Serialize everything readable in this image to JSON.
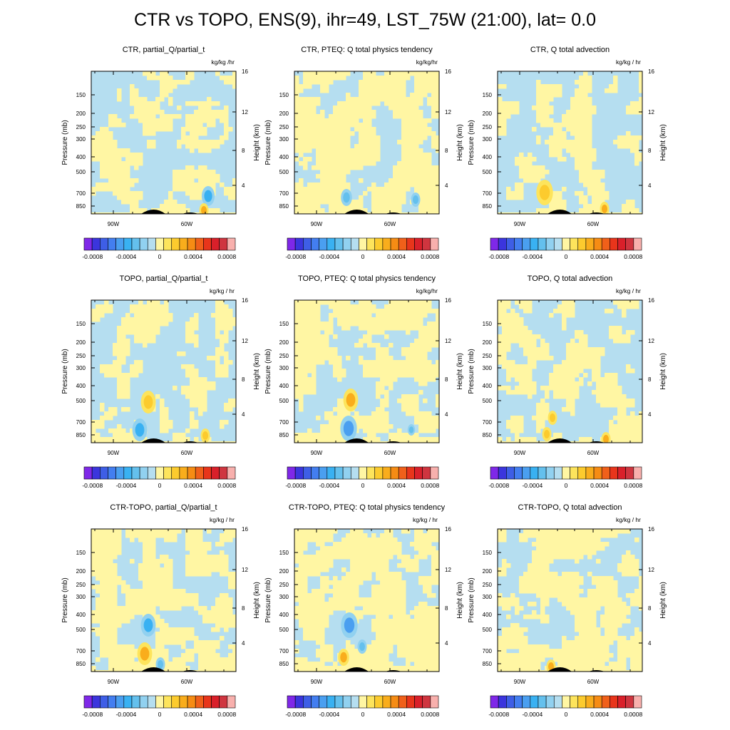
{
  "main_title": "CTR vs TOPO, ENS(9), ihr=49, LST_75W (21:00), lat=  0.0",
  "colors": {
    "levels": [
      "#7f28e8",
      "#3b35dd",
      "#3e5ee6",
      "#437ef0",
      "#4a9ff0",
      "#39b1f2",
      "#64c0ed",
      "#91d1f0",
      "#b5def0",
      "#fff6a3",
      "#fde45c",
      "#fccb2e",
      "#f9ad1c",
      "#f68c14",
      "#f0601a",
      "#e8351b",
      "#d9202a",
      "#cf353f",
      "#f8b0ad"
    ],
    "background_field": "#b5def0",
    "positive_field": "#fff6a3",
    "terrain": "#000000"
  },
  "chart_data": [
    {
      "type": "contour",
      "title": "CTR, partial_Q/partial_t",
      "units": "kg/kg /hr",
      "ylabel": "Pressure (mb)",
      "y2label": "Height (km)",
      "pressure_ticks": [
        "150",
        "200",
        "250",
        "300",
        "400",
        "500",
        "700",
        "850"
      ],
      "height_ticks": [
        "4",
        "8",
        "12",
        "16"
      ],
      "x_ticks": [
        "90W",
        "60W"
      ],
      "colorbar_labels": [
        "-0.0008",
        "-0.0004",
        "0",
        "0.0004",
        "0.0008"
      ],
      "colorbar_range": [
        -0.0009,
        0.0009
      ],
      "regime": "blue"
    },
    {
      "type": "contour",
      "title": "CTR, PTEQ: Q total physics tendency",
      "units": "kg/kg/hr",
      "ylabel": "Pressure (mb)",
      "y2label": "Height (km)",
      "pressure_ticks": [
        "150",
        "200",
        "250",
        "300",
        "400",
        "500",
        "700",
        "850"
      ],
      "height_ticks": [
        "4",
        "8",
        "12",
        "16"
      ],
      "x_ticks": [
        "90W",
        "60W"
      ],
      "colorbar_labels": [
        "-0.0008",
        "-0.0004",
        "0",
        "0.0004",
        "0.0008"
      ],
      "colorbar_range": [
        -0.0009,
        0.0009
      ],
      "regime": "yellow"
    },
    {
      "type": "contour",
      "title": "CTR, Q total advection",
      "units": "kg/kg / hr",
      "ylabel": "Pressure (mb)",
      "y2label": "Height (km)",
      "pressure_ticks": [
        "150",
        "200",
        "250",
        "300",
        "400",
        "500",
        "700",
        "850"
      ],
      "height_ticks": [
        "4",
        "8",
        "12",
        "16"
      ],
      "x_ticks": [
        "90W",
        "60W"
      ],
      "colorbar_labels": [
        "-0.0008",
        "-0.0004",
        "0",
        "0.0004",
        "0.0008"
      ],
      "colorbar_range": [
        -0.0009,
        0.0009
      ],
      "regime": "blue"
    },
    {
      "type": "contour",
      "title": "TOPO, partial_Q/partial_t",
      "units": "kg/kg / hr",
      "ylabel": "Pressure (mb)",
      "y2label": "Height (km)",
      "pressure_ticks": [
        "150",
        "200",
        "250",
        "300",
        "400",
        "500",
        "700",
        "850"
      ],
      "height_ticks": [
        "4",
        "8",
        "12",
        "16"
      ],
      "x_ticks": [
        "90W",
        "60W"
      ],
      "colorbar_labels": [
        "-0.0008",
        "-0.0004",
        "0",
        "0.0004",
        "0.0008"
      ],
      "colorbar_range": [
        -0.0009,
        0.0009
      ],
      "regime": "blue"
    },
    {
      "type": "contour",
      "title": "TOPO, PTEQ: Q total physics tendency",
      "units": "kg/kg/hr",
      "ylabel": "Pressure (mb)",
      "y2label": "Height (km)",
      "pressure_ticks": [
        "150",
        "200",
        "250",
        "300",
        "400",
        "500",
        "700",
        "850"
      ],
      "height_ticks": [
        "4",
        "8",
        "12",
        "16"
      ],
      "x_ticks": [
        "90W",
        "60W"
      ],
      "colorbar_labels": [
        "-0.0008",
        "-0.0004",
        "0",
        "0.0004",
        "0.0008"
      ],
      "colorbar_range": [
        -0.0009,
        0.0009
      ],
      "regime": "yellow"
    },
    {
      "type": "contour",
      "title": "TOPO, Q total advection",
      "units": "kg/kg / hr",
      "ylabel": "Pressure (mb)",
      "y2label": "Height (km)",
      "pressure_ticks": [
        "150",
        "200",
        "250",
        "300",
        "400",
        "500",
        "700",
        "850"
      ],
      "height_ticks": [
        "4",
        "8",
        "12",
        "16"
      ],
      "x_ticks": [
        "90W",
        "60W"
      ],
      "colorbar_labels": [
        "-0.0008",
        "-0.0004",
        "0",
        "0.0004",
        "0.0008"
      ],
      "colorbar_range": [
        -0.0009,
        0.0009
      ],
      "regime": "blue"
    },
    {
      "type": "contour",
      "title": "CTR-TOPO, partial_Q/partial_t",
      "units": "kg/kg / hr",
      "ylabel": "Pressure (mb)",
      "y2label": "Height (km)",
      "pressure_ticks": [
        "150",
        "200",
        "250",
        "300",
        "400",
        "500",
        "700",
        "850"
      ],
      "height_ticks": [
        "4",
        "8",
        "12",
        "16"
      ],
      "x_ticks": [
        "90W",
        "60W"
      ],
      "colorbar_labels": [
        "-0.0008",
        "-0.0004",
        "0",
        "0.0004",
        "0.0008"
      ],
      "colorbar_range": [
        -0.0009,
        0.0009
      ],
      "regime": "yellow"
    },
    {
      "type": "contour",
      "title": "CTR-TOPO, PTEQ: Q total physics tendency",
      "units": "kg/kg / hr",
      "ylabel": "Pressure (mb)",
      "y2label": "Height (km)",
      "pressure_ticks": [
        "150",
        "200",
        "250",
        "300",
        "400",
        "500",
        "700",
        "850"
      ],
      "height_ticks": [
        "4",
        "8",
        "12",
        "16"
      ],
      "x_ticks": [
        "90W",
        "60W"
      ],
      "colorbar_labels": [
        "-0.0008",
        "-0.0004",
        "0",
        "0.0004",
        "0.0008"
      ],
      "colorbar_range": [
        -0.0009,
        0.0009
      ],
      "regime": "yellow"
    },
    {
      "type": "contour",
      "title": "CTR-TOPO, Q total advection",
      "units": "kg/kg / hr",
      "ylabel": "Pressure (mb)",
      "y2label": "Height (km)",
      "pressure_ticks": [
        "150",
        "200",
        "250",
        "300",
        "400",
        "500",
        "700",
        "850"
      ],
      "height_ticks": [
        "4",
        "8",
        "12",
        "16"
      ],
      "x_ticks": [
        "90W",
        "60W"
      ],
      "colorbar_labels": [
        "-0.0008",
        "-0.0004",
        "0",
        "0.0004",
        "0.0008"
      ],
      "colorbar_range": [
        -0.0009,
        0.0009
      ],
      "regime": "yellow"
    }
  ]
}
